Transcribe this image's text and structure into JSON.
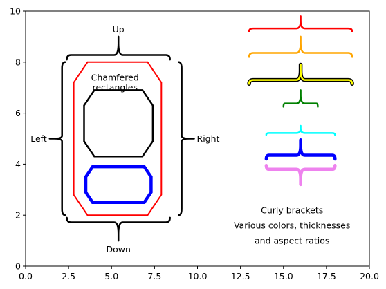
{
  "chart_data": {
    "type": "line",
    "title": "",
    "xlabel": "",
    "ylabel": "",
    "xlim": [
      0,
      20
    ],
    "ylim": [
      0,
      10
    ],
    "xticks": [
      0.0,
      2.5,
      5.0,
      7.5,
      10.0,
      12.5,
      15.0,
      17.5,
      20.0
    ],
    "xtick_labels": [
      "0.0",
      "2.5",
      "5.0",
      "7.5",
      "10.0",
      "12.5",
      "15.0",
      "17.5",
      "20.0"
    ],
    "yticks": [
      0,
      2,
      4,
      6,
      8,
      10
    ],
    "ytick_labels": [
      "0",
      "2",
      "4",
      "6",
      "8",
      "10"
    ],
    "grid": false,
    "shapes": [
      {
        "kind": "chamfered-rectangle",
        "color": "#ff0000",
        "x": [
          2.8,
          7.9
        ],
        "y": [
          2.0,
          8.0
        ],
        "chamfer_x": 0.8,
        "chamfer_y": 0.8,
        "thickness": "thin"
      },
      {
        "kind": "chamfered-rectangle",
        "color": "#000000",
        "x": [
          3.4,
          7.4
        ],
        "y": [
          4.3,
          6.9
        ],
        "chamfer_x": 0.6,
        "chamfer_y": 0.6,
        "thickness": "medium"
      },
      {
        "kind": "chamfered-rectangle",
        "color": "#0000ff",
        "x": [
          3.5,
          7.3
        ],
        "y": [
          2.5,
          3.9
        ],
        "chamfer_x": 0.4,
        "chamfer_y": 0.4,
        "thickness": "thick"
      }
    ],
    "brackets": [
      {
        "label": "Up",
        "orientation": "up",
        "color": "#000000",
        "from": 2.4,
        "to": 8.4,
        "base": 8.1,
        "tip": 9.0,
        "thickness": "medium"
      },
      {
        "label": "Down",
        "orientation": "down",
        "color": "#000000",
        "from": 2.4,
        "to": 8.4,
        "base": 1.9,
        "tip": 1.0,
        "thickness": "medium"
      },
      {
        "label": "Left",
        "orientation": "left",
        "color": "#000000",
        "from": 2.0,
        "to": 8.0,
        "base": 2.3,
        "tip": 1.4,
        "thickness": "medium"
      },
      {
        "label": "Right",
        "orientation": "right",
        "color": "#000000",
        "from": 2.0,
        "to": 8.0,
        "base": 8.9,
        "tip": 9.8,
        "thickness": "medium"
      },
      {
        "label": "",
        "orientation": "up",
        "color": "#ff0000",
        "from": 13.0,
        "to": 19.0,
        "base": 9.2,
        "tip": 9.8,
        "thickness": "medium"
      },
      {
        "label": "",
        "orientation": "up",
        "color": "#ffa500",
        "from": 13.0,
        "to": 19.0,
        "base": 8.2,
        "tip": 9.0,
        "thickness": "medium"
      },
      {
        "label": "",
        "orientation": "up",
        "color": "#ffff00",
        "edgecolor": "#000000",
        "from": 13.0,
        "to": 19.0,
        "base": 7.15,
        "tip": 7.9,
        "thickness": "medium"
      },
      {
        "label": "",
        "orientation": "up",
        "color": "#008000",
        "from": 15.0,
        "to": 17.0,
        "base": 6.25,
        "tip": 6.9,
        "thickness": "medium"
      },
      {
        "label": "",
        "orientation": "up",
        "color": "#00ffff",
        "from": 14.0,
        "to": 18.0,
        "base": 5.15,
        "tip": 5.5,
        "thickness": "medium"
      },
      {
        "label": "",
        "orientation": "up",
        "color": "#0000ff",
        "from": 14.0,
        "to": 18.0,
        "base": 4.2,
        "tip": 4.95,
        "thickness": "thick"
      },
      {
        "label": "",
        "orientation": "down",
        "color": "#ee82ee",
        "from": 14.0,
        "to": 18.0,
        "base": 3.95,
        "tip": 3.2,
        "thickness": "thick"
      }
    ],
    "annotations": [
      {
        "text": "Chamfered",
        "x": 5.2,
        "y": 7.4
      },
      {
        "text": "rectangles",
        "x": 5.2,
        "y": 7.0
      },
      {
        "text": "Curly brackets",
        "x": 15.5,
        "y": 2.2
      },
      {
        "text": "Various colors, thicknesses",
        "x": 15.5,
        "y": 1.6
      },
      {
        "text": "and aspect ratios",
        "x": 15.5,
        "y": 1.0
      }
    ]
  }
}
